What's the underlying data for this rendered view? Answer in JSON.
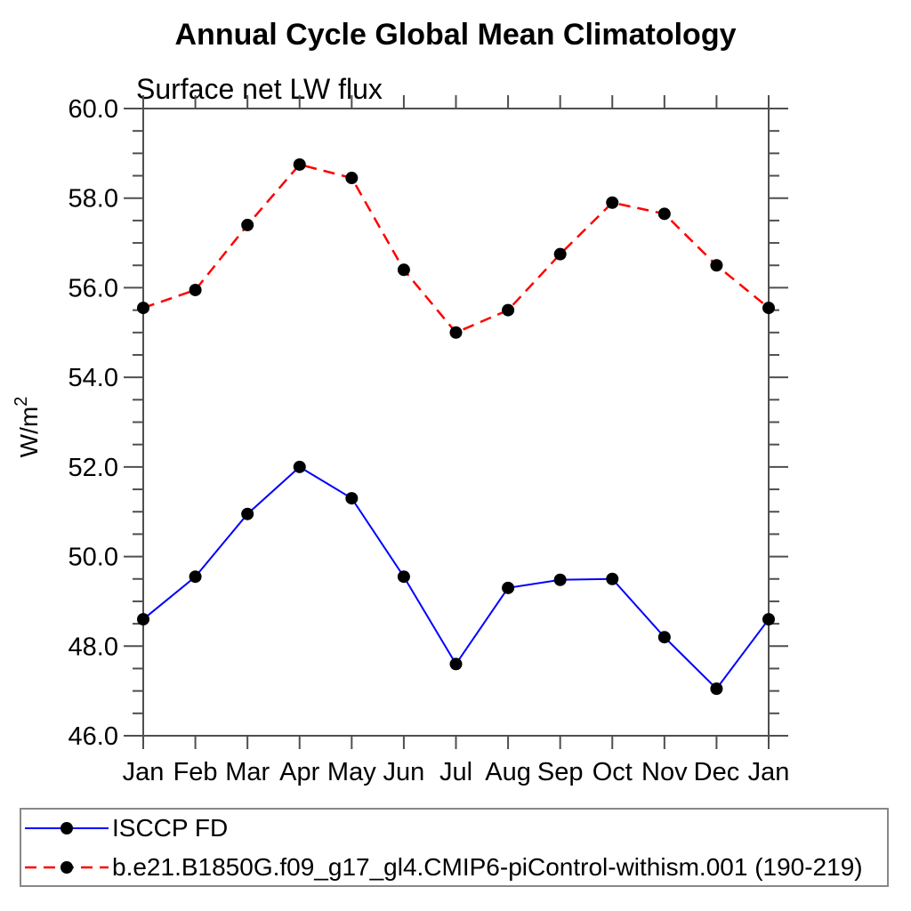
{
  "chart_data": {
    "type": "line",
    "title": "Annual Cycle Global Mean Climatology",
    "subtitle": "Surface net LW flux",
    "ylabel": {
      "base": "W/m",
      "exponent": "2"
    },
    "x_categories": [
      "Jan",
      "Feb",
      "Mar",
      "Apr",
      "May",
      "Jun",
      "Jul",
      "Aug",
      "Sep",
      "Oct",
      "Nov",
      "Dec",
      "Jan"
    ],
    "ylim": [
      46.0,
      60.0
    ],
    "ytick_major_step": 2.0,
    "ytick_minor_step": 0.5,
    "ytick_label_decimals": 1,
    "grid": "off",
    "legend_position": "bottom-left-box",
    "series": [
      {
        "name": "ISCCP FD",
        "line_color": "#0000ff",
        "line_style": "solid",
        "line_width": 2,
        "marker": "filled-circle",
        "marker_color": "#000000",
        "values": [
          48.6,
          49.55,
          50.95,
          52.0,
          51.3,
          49.55,
          47.6,
          49.3,
          49.48,
          49.5,
          48.2,
          47.05,
          48.6
        ]
      },
      {
        "name": "b.e21.B1850G.f09_g17_gl4.CMIP6-piControl-withism.001 (190-219)",
        "line_color": "#ff0000",
        "line_style": "dashed",
        "line_width": 2.5,
        "marker": "filled-circle",
        "marker_color": "#000000",
        "values": [
          55.55,
          55.95,
          57.4,
          58.75,
          58.45,
          56.4,
          55.0,
          55.5,
          56.75,
          57.9,
          57.65,
          56.5,
          55.55
        ]
      }
    ],
    "colors": {
      "axis": "#4f4f4f",
      "tick": "#4f4f4f",
      "text": "#000000",
      "legend_border": "#888888",
      "background": "#ffffff"
    }
  }
}
